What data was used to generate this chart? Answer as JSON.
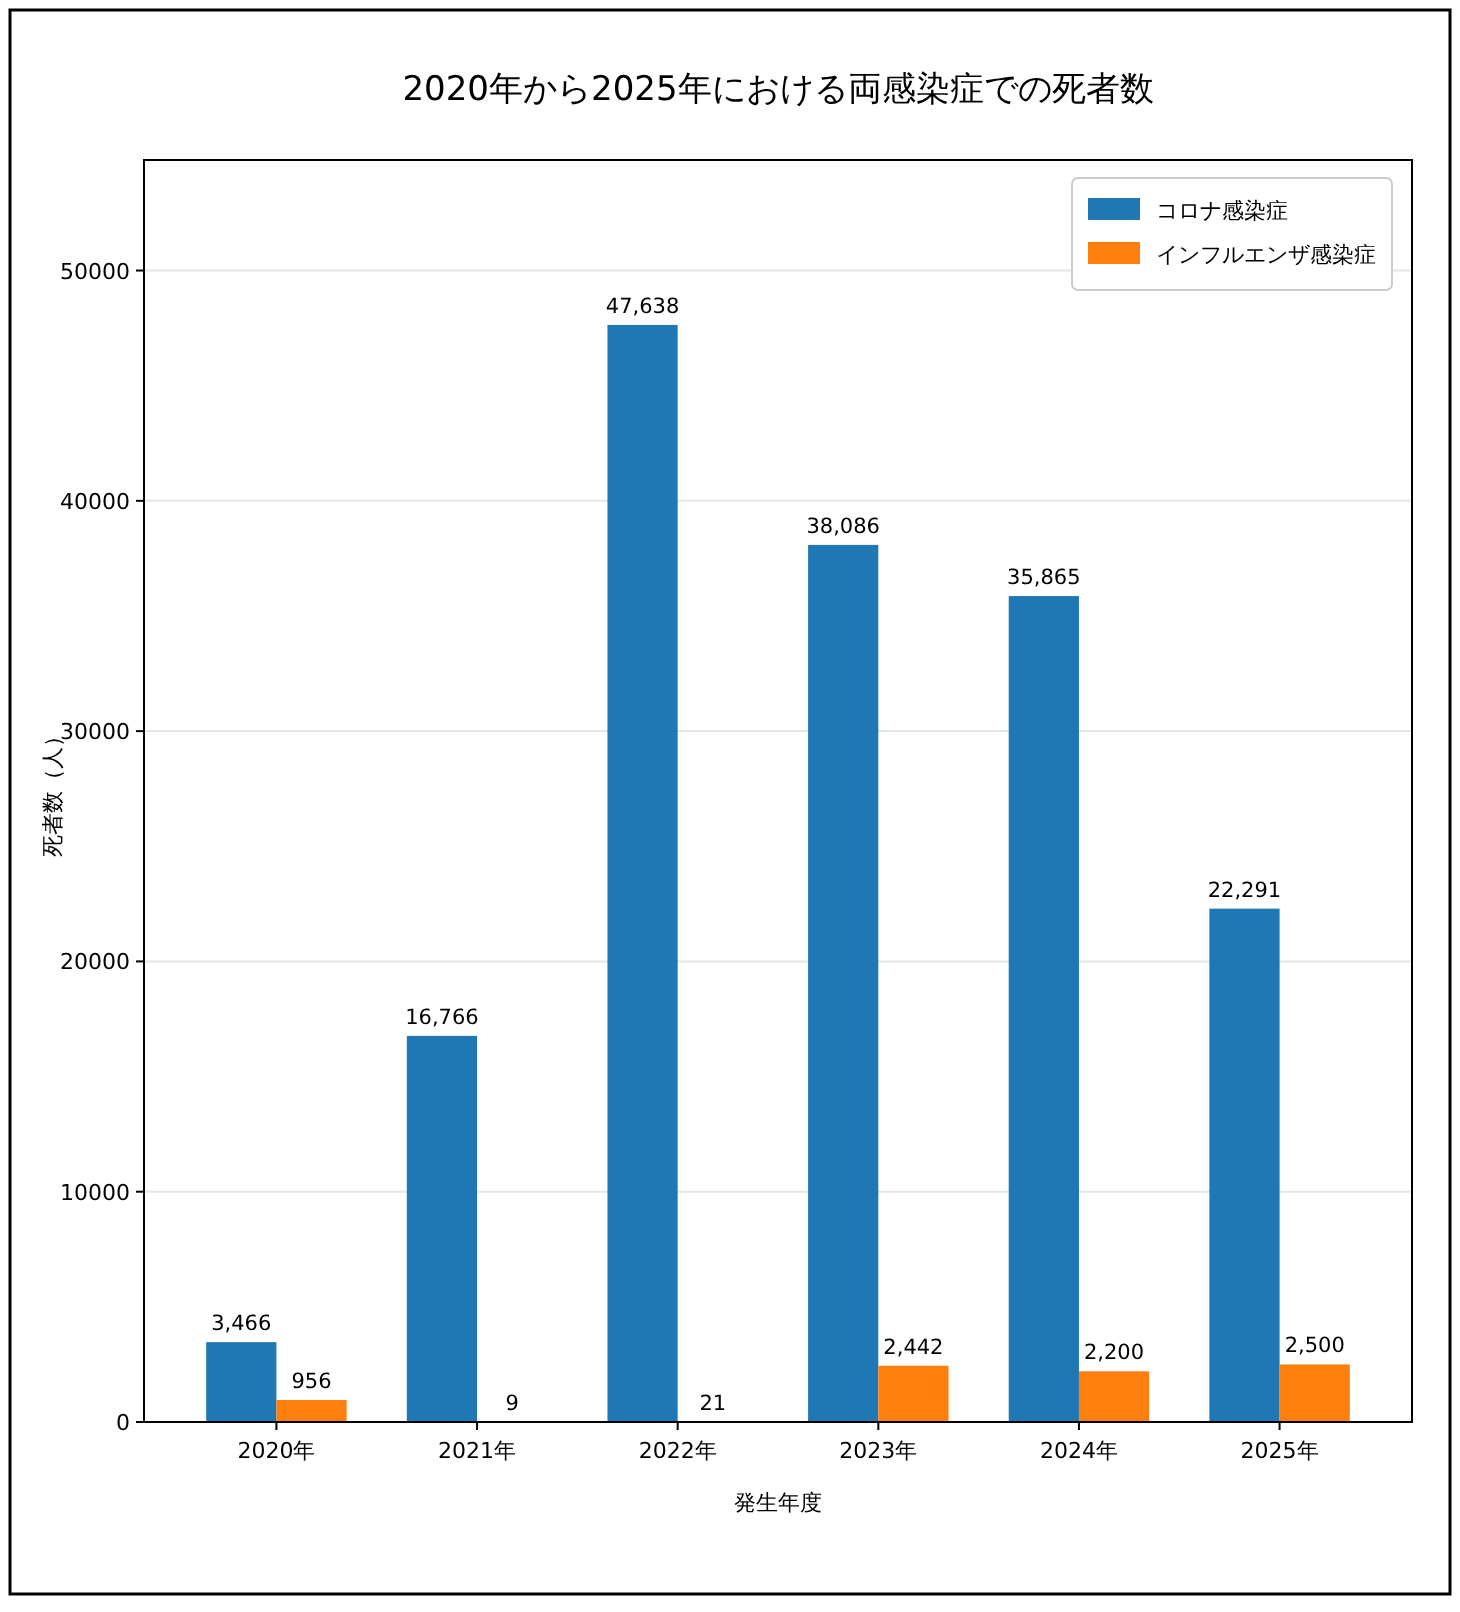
{
  "chart_data": {
    "type": "bar",
    "title": "2020年から2025年における両感染症での死者数",
    "xlabel": "発生年度",
    "ylabel": "死者数（人）",
    "categories": [
      "2020年",
      "2021年",
      "2022年",
      "2023年",
      "2024年",
      "2025年"
    ],
    "series": [
      {
        "name": "コロナ感染症",
        "color": "#1f77b4",
        "values": [
          3466,
          16766,
          47638,
          38086,
          35865,
          22291
        ],
        "value_labels": [
          "3,466",
          "16,766",
          "47,638",
          "38,086",
          "35,865",
          "22,291"
        ]
      },
      {
        "name": "インフルエンザ感染症",
        "color": "#ff7f0e",
        "values": [
          956,
          9,
          21,
          2442,
          2200,
          2500
        ],
        "value_labels": [
          "956",
          "9",
          "21",
          "2,442",
          "2,200",
          "2,500"
        ]
      }
    ],
    "ylim": [
      0,
      54800
    ],
    "yticks": [
      0,
      10000,
      20000,
      30000,
      40000,
      50000
    ],
    "grid": "y",
    "legend": "top right"
  }
}
